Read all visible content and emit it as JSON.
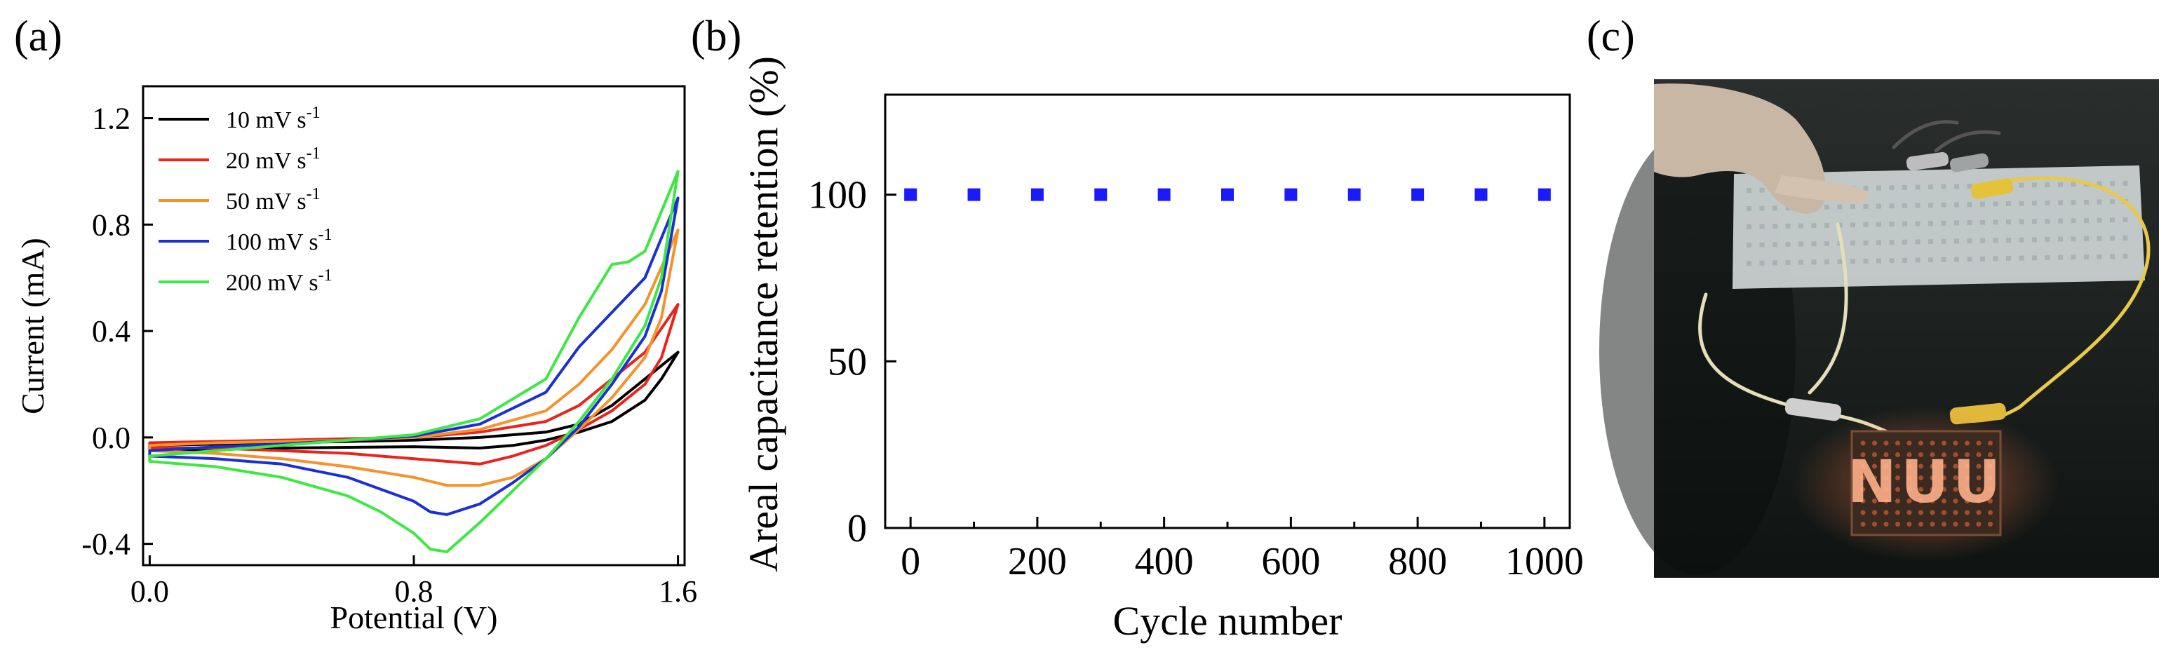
{
  "figure": {
    "panels": [
      {
        "label": "(a)"
      },
      {
        "label": "(b)"
      },
      {
        "label": "(c)"
      }
    ]
  },
  "chart_data": [
    {
      "type": "line",
      "panel": "(a)",
      "title": "",
      "xlabel": "Potential (V)",
      "ylabel": "Current (mA)",
      "xlim": [
        -0.02,
        1.62
      ],
      "ylim": [
        -0.48,
        1.32
      ],
      "xticks": [
        0.0,
        0.8,
        1.6
      ],
      "xtick_labels": [
        "0.0",
        "0.8",
        "1.6"
      ],
      "yticks": [
        -0.4,
        0.0,
        0.4,
        0.8,
        1.2
      ],
      "ytick_labels": [
        "-0.4",
        "0.0",
        "0.4",
        "0.8",
        "1.2"
      ],
      "grid": false,
      "legend_position": "top-left",
      "series": [
        {
          "name": "10  mV s",
          "sup": "-1",
          "color": "#000000",
          "forward": [
            [
              0,
              -0.03
            ],
            [
              0.2,
              -0.025
            ],
            [
              0.4,
              -0.02
            ],
            [
              0.6,
              -0.015
            ],
            [
              0.8,
              -0.01
            ],
            [
              1.0,
              0.0
            ],
            [
              1.2,
              0.02
            ],
            [
              1.3,
              0.05
            ],
            [
              1.4,
              0.12
            ],
            [
              1.5,
              0.22
            ],
            [
              1.6,
              0.32
            ]
          ],
          "reverse": [
            [
              1.6,
              0.32
            ],
            [
              1.55,
              0.22
            ],
            [
              1.5,
              0.14
            ],
            [
              1.4,
              0.06
            ],
            [
              1.3,
              0.02
            ],
            [
              1.2,
              -0.01
            ],
            [
              1.1,
              -0.03
            ],
            [
              1.0,
              -0.04
            ],
            [
              0.8,
              -0.035
            ],
            [
              0.4,
              -0.04
            ],
            [
              0,
              -0.05
            ]
          ]
        },
        {
          "name": "20  mV s",
          "sup": "-1",
          "color": "#e8241c",
          "forward": [
            [
              0,
              -0.02
            ],
            [
              0.2,
              -0.015
            ],
            [
              0.4,
              -0.01
            ],
            [
              0.6,
              -0.005
            ],
            [
              0.8,
              0.0
            ],
            [
              1.0,
              0.02
            ],
            [
              1.2,
              0.06
            ],
            [
              1.3,
              0.12
            ],
            [
              1.4,
              0.22
            ],
            [
              1.5,
              0.32
            ],
            [
              1.6,
              0.5
            ]
          ],
          "reverse": [
            [
              1.6,
              0.5
            ],
            [
              1.55,
              0.3
            ],
            [
              1.5,
              0.2
            ],
            [
              1.4,
              0.1
            ],
            [
              1.3,
              0.03
            ],
            [
              1.2,
              -0.03
            ],
            [
              1.1,
              -0.07
            ],
            [
              1.0,
              -0.1
            ],
            [
              0.9,
              -0.09
            ],
            [
              0.8,
              -0.08
            ],
            [
              0.6,
              -0.06
            ],
            [
              0.4,
              -0.05
            ],
            [
              0.2,
              -0.04
            ],
            [
              0,
              -0.04
            ]
          ]
        },
        {
          "name": "50  mV s",
          "sup": "-1",
          "color": "#f5922b",
          "forward": [
            [
              0,
              -0.03
            ],
            [
              0.2,
              -0.02
            ],
            [
              0.4,
              -0.015
            ],
            [
              0.6,
              -0.01
            ],
            [
              0.8,
              0.0
            ],
            [
              1.0,
              0.03
            ],
            [
              1.2,
              0.1
            ],
            [
              1.3,
              0.2
            ],
            [
              1.4,
              0.33
            ],
            [
              1.5,
              0.5
            ],
            [
              1.6,
              0.78
            ]
          ],
          "reverse": [
            [
              1.6,
              0.78
            ],
            [
              1.55,
              0.45
            ],
            [
              1.5,
              0.3
            ],
            [
              1.4,
              0.15
            ],
            [
              1.3,
              0.03
            ],
            [
              1.2,
              -0.08
            ],
            [
              1.1,
              -0.15
            ],
            [
              1.0,
              -0.18
            ],
            [
              0.9,
              -0.18
            ],
            [
              0.8,
              -0.15
            ],
            [
              0.6,
              -0.11
            ],
            [
              0.4,
              -0.08
            ],
            [
              0.2,
              -0.06
            ],
            [
              0,
              -0.05
            ]
          ]
        },
        {
          "name": "100 mV s",
          "sup": "-1",
          "color": "#1b2fd6",
          "forward": [
            [
              0,
              -0.05
            ],
            [
              0.2,
              -0.035
            ],
            [
              0.4,
              -0.025
            ],
            [
              0.6,
              -0.01
            ],
            [
              0.8,
              0.005
            ],
            [
              1.0,
              0.05
            ],
            [
              1.2,
              0.17
            ],
            [
              1.3,
              0.34
            ],
            [
              1.4,
              0.47
            ],
            [
              1.5,
              0.6
            ],
            [
              1.6,
              0.9
            ]
          ],
          "reverse": [
            [
              1.6,
              0.9
            ],
            [
              1.55,
              0.55
            ],
            [
              1.5,
              0.38
            ],
            [
              1.4,
              0.2
            ],
            [
              1.3,
              0.04
            ],
            [
              1.2,
              -0.08
            ],
            [
              1.1,
              -0.17
            ],
            [
              1.0,
              -0.25
            ],
            [
              0.9,
              -0.29
            ],
            [
              0.85,
              -0.28
            ],
            [
              0.8,
              -0.24
            ],
            [
              0.6,
              -0.15
            ],
            [
              0.4,
              -0.1
            ],
            [
              0.2,
              -0.08
            ],
            [
              0,
              -0.07
            ]
          ]
        },
        {
          "name": "200 mV s",
          "sup": "-1",
          "color": "#3ee843",
          "forward": [
            [
              0,
              -0.07
            ],
            [
              0.2,
              -0.05
            ],
            [
              0.4,
              -0.03
            ],
            [
              0.6,
              -0.01
            ],
            [
              0.8,
              0.01
            ],
            [
              1.0,
              0.07
            ],
            [
              1.2,
              0.22
            ],
            [
              1.3,
              0.45
            ],
            [
              1.4,
              0.65
            ],
            [
              1.45,
              0.66
            ],
            [
              1.5,
              0.7
            ],
            [
              1.6,
              1.0
            ]
          ],
          "reverse": [
            [
              1.6,
              1.0
            ],
            [
              1.55,
              0.6
            ],
            [
              1.5,
              0.42
            ],
            [
              1.4,
              0.22
            ],
            [
              1.3,
              0.06
            ],
            [
              1.2,
              -0.08
            ],
            [
              1.1,
              -0.2
            ],
            [
              1.0,
              -0.32
            ],
            [
              0.9,
              -0.43
            ],
            [
              0.85,
              -0.42
            ],
            [
              0.8,
              -0.36
            ],
            [
              0.7,
              -0.28
            ],
            [
              0.6,
              -0.22
            ],
            [
              0.4,
              -0.15
            ],
            [
              0.2,
              -0.11
            ],
            [
              0,
              -0.09
            ]
          ]
        }
      ]
    },
    {
      "type": "scatter",
      "panel": "(b)",
      "title": "",
      "xlabel": "Cycle number",
      "ylabel": "Areal capacitance retention (%)",
      "xlim": [
        -40,
        1040
      ],
      "ylim": [
        0,
        130
      ],
      "xticks": [
        0,
        200,
        400,
        600,
        800,
        1000
      ],
      "xtick_labels": [
        "0",
        "200",
        "400",
        "600",
        "800",
        "1000"
      ],
      "yticks": [
        0,
        50,
        100
      ],
      "ytick_labels": [
        "0",
        "50",
        "100"
      ],
      "grid": false,
      "marker_color": "#1a1aff",
      "x": [
        0,
        100,
        200,
        300,
        400,
        500,
        600,
        700,
        800,
        900,
        1000
      ],
      "y": [
        100,
        100,
        100,
        100,
        100,
        100,
        100,
        100,
        100,
        100,
        100
      ]
    }
  ],
  "photo": {
    "panel": "(c)",
    "led_text": "NUU"
  }
}
